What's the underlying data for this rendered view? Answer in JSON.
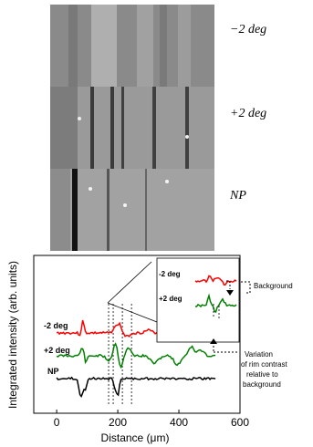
{
  "micrographs": [
    {
      "label": "−2 deg"
    },
    {
      "label": "+2 deg"
    },
    {
      "label": "NP"
    }
  ],
  "chart_data": {
    "type": "line",
    "xlabel": "Distance (μm)",
    "ylabel": "Integrated intensity (arb. units)",
    "xlim": [
      -75,
      600
    ],
    "xticks": [
      0,
      200,
      400,
      600
    ],
    "series": [
      {
        "name": "-2 deg",
        "color": "#ff0000"
      },
      {
        "name": "+2 deg",
        "color": "#008000"
      },
      {
        "name": "NP",
        "color": "#000000"
      }
    ],
    "inset_series_labels": [
      "-2 deg",
      "+2 deg"
    ],
    "annotations": [
      "Background",
      "Variation",
      "of rim contrast",
      "relative to",
      "background"
    ]
  }
}
